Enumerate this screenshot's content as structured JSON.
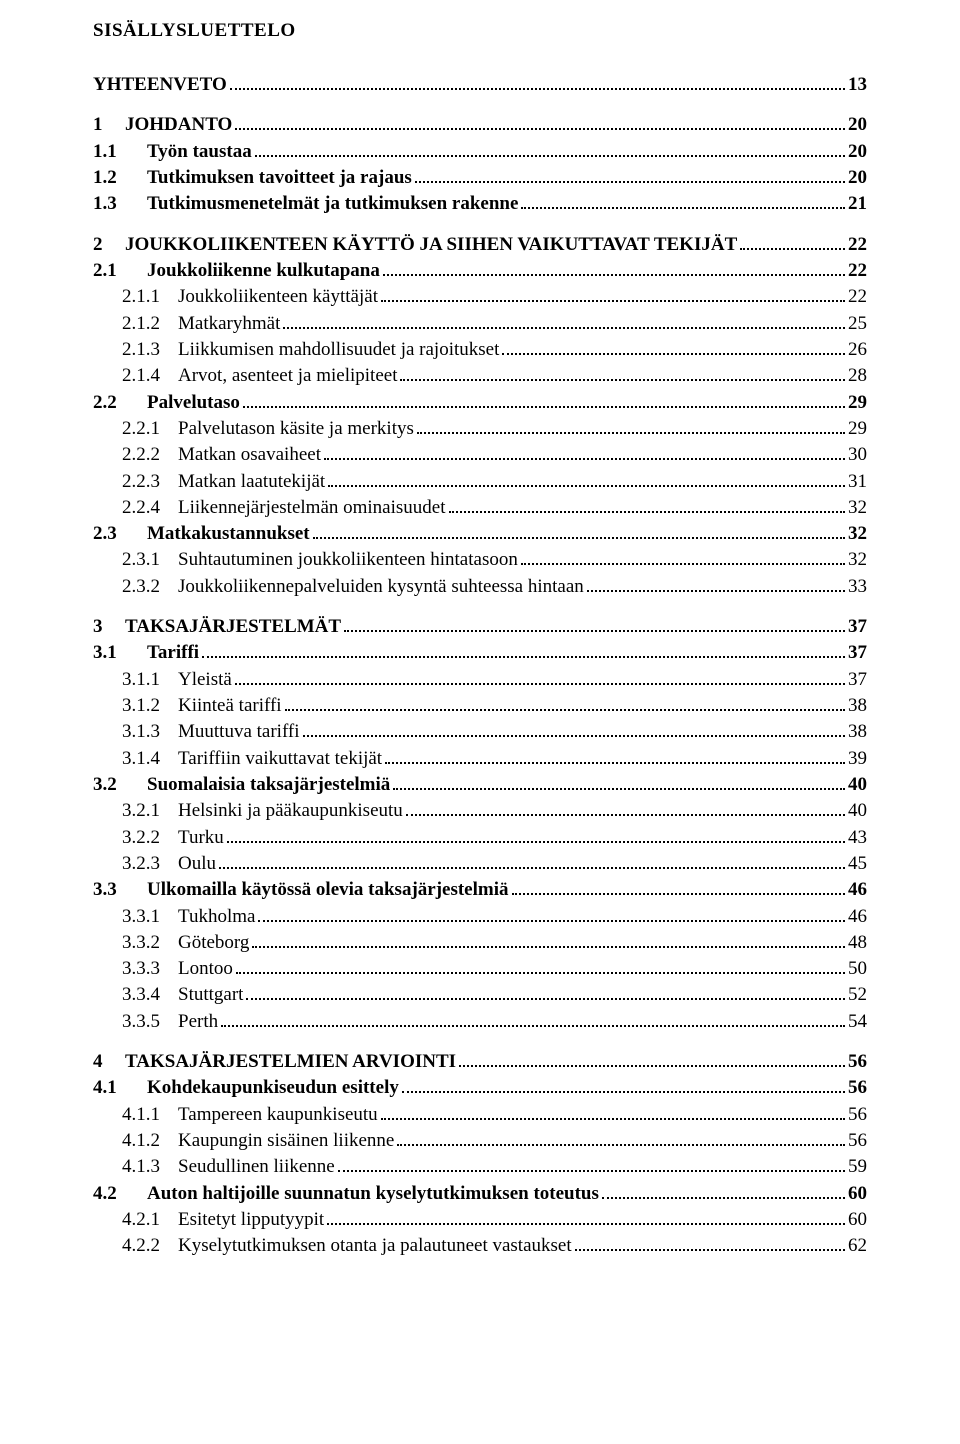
{
  "title": "SISÄLLYSLUETTELO",
  "entries": [
    {
      "level": 0,
      "num": "",
      "text": "YHTEENVETO",
      "page": "13"
    },
    {
      "level": 0,
      "num": "1",
      "text": "JOHDANTO",
      "page": "20"
    },
    {
      "level": 1,
      "num": "1.1",
      "text": "Työn taustaa",
      "page": "20"
    },
    {
      "level": 1,
      "num": "1.2",
      "text": "Tutkimuksen tavoitteet ja rajaus",
      "page": "20"
    },
    {
      "level": 1,
      "num": "1.3",
      "text": "Tutkimusmenetelmät ja tutkimuksen rakenne",
      "page": "21"
    },
    {
      "level": 0,
      "num": "2",
      "text": "JOUKKOLIIKENTEEN KÄYTTÖ JA SIIHEN VAIKUTTAVAT TEKIJÄT",
      "page": "22"
    },
    {
      "level": 1,
      "num": "2.1",
      "text": "Joukkoliikenne kulkutapana",
      "page": "22"
    },
    {
      "level": 2,
      "num": "2.1.1",
      "text": "Joukkoliikenteen käyttäjät",
      "page": "22"
    },
    {
      "level": 2,
      "num": "2.1.2",
      "text": "Matkaryhmät",
      "page": "25"
    },
    {
      "level": 2,
      "num": "2.1.3",
      "text": "Liikkumisen mahdollisuudet ja rajoitukset",
      "page": "26"
    },
    {
      "level": 2,
      "num": "2.1.4",
      "text": "Arvot, asenteet ja mielipiteet",
      "page": "28"
    },
    {
      "level": 1,
      "num": "2.2",
      "text": "Palvelutaso",
      "page": "29"
    },
    {
      "level": 2,
      "num": "2.2.1",
      "text": "Palvelutason käsite ja merkitys",
      "page": "29"
    },
    {
      "level": 2,
      "num": "2.2.2",
      "text": "Matkan osavaiheet",
      "page": "30"
    },
    {
      "level": 2,
      "num": "2.2.3",
      "text": "Matkan laatutekijät",
      "page": "31"
    },
    {
      "level": 2,
      "num": "2.2.4",
      "text": "Liikennejärjestelmän ominaisuudet",
      "page": "32"
    },
    {
      "level": 1,
      "num": "2.3",
      "text": "Matkakustannukset",
      "page": "32"
    },
    {
      "level": 2,
      "num": "2.3.1",
      "text": "Suhtautuminen joukkoliikenteen hintatasoon",
      "page": "32"
    },
    {
      "level": 2,
      "num": "2.3.2",
      "text": "Joukkoliikennepalveluiden kysyntä suhteessa hintaan",
      "page": "33"
    },
    {
      "level": 0,
      "num": "3",
      "text": "TAKSAJÄRJESTELMÄT",
      "page": "37"
    },
    {
      "level": 1,
      "num": "3.1",
      "text": "Tariffi",
      "page": "37"
    },
    {
      "level": 2,
      "num": "3.1.1",
      "text": "Yleistä",
      "page": "37"
    },
    {
      "level": 2,
      "num": "3.1.2",
      "text": "Kiinteä tariffi",
      "page": "38"
    },
    {
      "level": 2,
      "num": "3.1.3",
      "text": "Muuttuva tariffi",
      "page": "38"
    },
    {
      "level": 2,
      "num": "3.1.4",
      "text": "Tariffiin vaikuttavat tekijät",
      "page": "39"
    },
    {
      "level": 1,
      "num": "3.2",
      "text": "Suomalaisia taksajärjestelmiä",
      "page": "40"
    },
    {
      "level": 2,
      "num": "3.2.1",
      "text": "Helsinki ja pääkaupunkiseutu",
      "page": "40"
    },
    {
      "level": 2,
      "num": "3.2.2",
      "text": "Turku",
      "page": "43"
    },
    {
      "level": 2,
      "num": "3.2.3",
      "text": "Oulu",
      "page": "45"
    },
    {
      "level": 1,
      "num": "3.3",
      "text": "Ulkomailla käytössä olevia taksajärjestelmiä",
      "page": "46"
    },
    {
      "level": 2,
      "num": "3.3.1",
      "text": "Tukholma",
      "page": "46"
    },
    {
      "level": 2,
      "num": "3.3.2",
      "text": "Göteborg",
      "page": "48"
    },
    {
      "level": 2,
      "num": "3.3.3",
      "text": "Lontoo",
      "page": "50"
    },
    {
      "level": 2,
      "num": "3.3.4",
      "text": "Stuttgart",
      "page": "52"
    },
    {
      "level": 2,
      "num": "3.3.5",
      "text": "Perth",
      "page": "54"
    },
    {
      "level": 0,
      "num": "4",
      "text": "TAKSAJÄRJESTELMIEN ARVIOINTI",
      "page": "56"
    },
    {
      "level": 1,
      "num": "4.1",
      "text": "Kohdekaupunkiseudun esittely",
      "page": "56"
    },
    {
      "level": 2,
      "num": "4.1.1",
      "text": "Tampereen kaupunkiseutu",
      "page": "56"
    },
    {
      "level": 2,
      "num": "4.1.2",
      "text": "Kaupungin sisäinen liikenne",
      "page": "56"
    },
    {
      "level": 2,
      "num": "4.1.3",
      "text": "Seudullinen liikenne",
      "page": "59"
    },
    {
      "level": 1,
      "num": "4.2",
      "text": "Auton haltijoille suunnatun kyselytutkimuksen toteutus",
      "page": "60"
    },
    {
      "level": 2,
      "num": "4.2.1",
      "text": "Esitetyt lipputyypit",
      "page": "60"
    },
    {
      "level": 2,
      "num": "4.2.2",
      "text": "Kyselytutkimuksen otanta ja palautuneet vastaukset",
      "page": "62"
    }
  ]
}
